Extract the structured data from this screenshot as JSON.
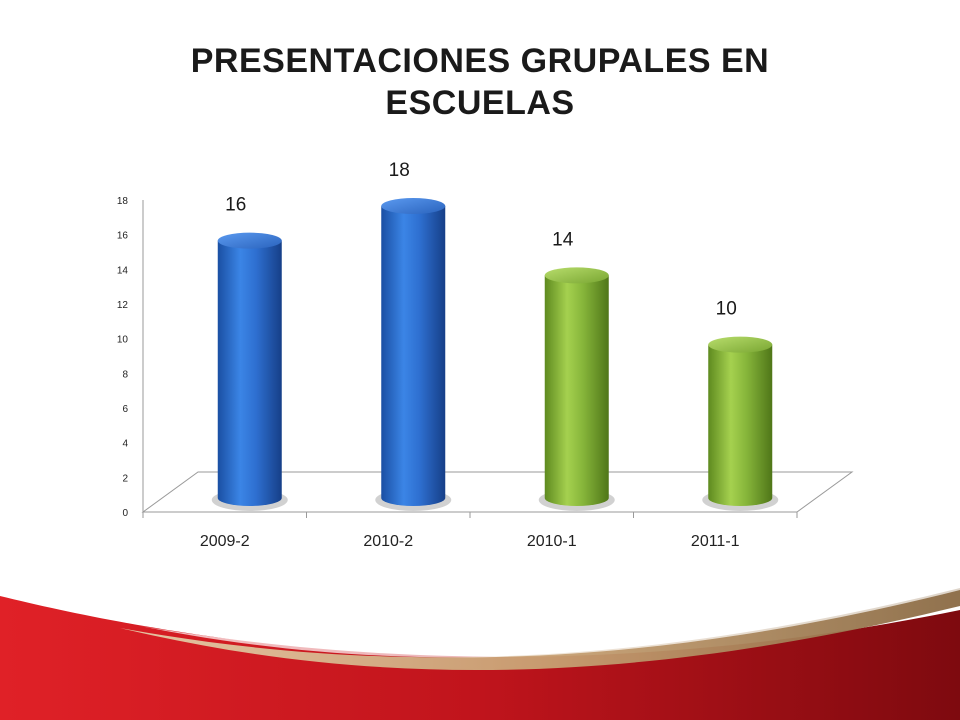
{
  "slide": {
    "title": "PRESENTACIONES  GRUPALES EN\nESCUELAS"
  },
  "colors": {
    "blue": "#2e6fd0",
    "green": "#86b53a",
    "accent_red": "#c0141c",
    "accent_gold": "#c9a274"
  },
  "chart_data": {
    "type": "bar",
    "style": "3d-cylinder",
    "categories": [
      "2009-2",
      "2010-2",
      "2010-1",
      "2011-1"
    ],
    "values": [
      16,
      18,
      14,
      10
    ],
    "value_labels": [
      "16",
      "18",
      "14",
      "10"
    ],
    "bar_colors": [
      "blue",
      "blue",
      "green",
      "green"
    ],
    "ylim": [
      0,
      18
    ],
    "yticks": [
      "0",
      "2",
      "4",
      "6",
      "8",
      "10",
      "12",
      "14",
      "16",
      "18"
    ],
    "grid": false,
    "legend": "none"
  }
}
